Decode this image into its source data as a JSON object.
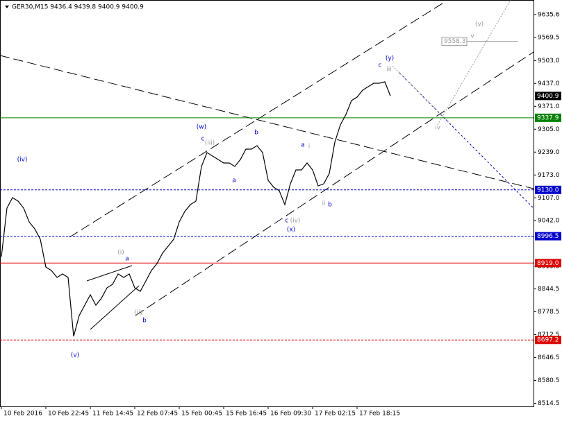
{
  "chart_data": {
    "type": "line",
    "header": "GER30,M15  9436.4 9439.8 9400.9 9400.9",
    "categories": [
      "10 Feb 2016",
      null,
      null,
      null,
      null,
      null,
      null,
      null,
      "10 Feb 22:45",
      null,
      null,
      null,
      null,
      null,
      null,
      null,
      "11 Feb 14:45",
      null,
      null,
      null,
      null,
      null,
      null,
      null,
      "12 Feb 07:45",
      null,
      null,
      null,
      null,
      null,
      null,
      null,
      "15 Feb 00:45",
      null,
      null,
      null,
      null,
      null,
      null,
      null,
      "15 Feb 16:45",
      null,
      null,
      null,
      null,
      null,
      null,
      null,
      "16 Feb 09:30",
      null,
      null,
      null,
      null,
      null,
      null,
      null,
      "17 Feb 02:15",
      null,
      null,
      null,
      null,
      null,
      null,
      null,
      "17 Feb 18:15",
      null,
      null,
      null,
      null,
      null,
      null
    ],
    "series": [
      {
        "color": "#000000",
        "values": [
          8937.6,
          9077.6,
          9107.6,
          9097.6,
          9077.6,
          9037.6,
          9017.6,
          8987.6,
          8907.6,
          8897.6,
          8877.6,
          8887.6,
          8877.6,
          8707.6,
          8767.6,
          8797.6,
          8827.6,
          8797.6,
          8817.6,
          8847.6,
          8857.6,
          8887.6,
          8877.6,
          8887.6,
          8847.6,
          8837.6,
          8867.6,
          8897.6,
          8917.6,
          8947.6,
          8967.6,
          8987.6,
          9037.6,
          9067.6,
          9087.6,
          9097.6,
          9197.6,
          9237.6,
          9227.6,
          9217.6,
          9207.6,
          9207.6,
          9197.6,
          9217.6,
          9247.6,
          9247.6,
          9257.6,
          9237.6,
          9157.6,
          9137.6,
          9127.6,
          9087.6,
          9147.6,
          9187.6,
          9187.6,
          9207.6,
          9187.6,
          9141.6,
          9147.6,
          9177.6,
          9267.6,
          9317.6,
          9347.6,
          9387.6,
          9397.6,
          9417.6,
          9427.6,
          9437.6,
          9437.6,
          9441.6,
          9400.9
        ]
      }
    ],
    "ylim": [
      8505.6,
      9677.6
    ],
    "yticks": [
      9635.6,
      9569.5,
      {
        "value": 9503,
        "label": "9503.0"
      },
      {
        "value": 9437,
        "label": "9437.0"
      },
      {
        "value": 9371,
        "label": "9371.0"
      },
      {
        "value": 9305,
        "label": "9305.0"
      },
      {
        "value": 9239,
        "label": "9239.0"
      },
      {
        "value": 9173,
        "label": "9173.0"
      },
      {
        "value": 9107,
        "label": "9107.0"
      },
      {
        "value": 9042,
        "label": "9042.0"
      },
      {
        "value": 8910,
        "label": "8910.0"
      },
      8844.5,
      8778.5,
      8712.5,
      8646.5,
      8580.5,
      8514.5
    ],
    "levels": [
      {
        "value": 9337.9,
        "color": "#008000",
        "dashed": false
      },
      {
        "value": 9130,
        "label": "9130.0",
        "color": "#0000cc",
        "dashed": true
      },
      {
        "value": 8996.5,
        "color": "#0000cc",
        "dashed": true
      },
      {
        "value": 8919,
        "label": "8919.0",
        "color": "#dd0000",
        "dashed": false
      },
      {
        "value": 8697.2,
        "color": "#dd0000",
        "dashed": true
      }
    ],
    "last_price": 9400.9,
    "target_price": 9558.3,
    "annotations": [
      {
        "text": "(iv)",
        "color": "#0000cc"
      },
      {
        "text": "(v)",
        "color": "#0000cc"
      },
      {
        "text": "(i)",
        "color": "#999999"
      },
      {
        "text": "a",
        "color": "#0000cc"
      },
      {
        "text": "(ii)",
        "color": "#999999"
      },
      {
        "text": "b",
        "color": "#0000cc"
      },
      {
        "text": "(w)",
        "color": "#0000cc"
      },
      {
        "text": "c",
        "color": "#0000cc"
      },
      {
        "text": "(iii)",
        "color": "#999999"
      },
      {
        "text": "b",
        "color": "#0000cc"
      },
      {
        "text": "a",
        "color": "#0000cc"
      },
      {
        "text": "a",
        "color": "#0000cc"
      },
      {
        "text": "i",
        "color": "#999999"
      },
      {
        "text": "ii",
        "color": "#999999"
      },
      {
        "text": "b",
        "color": "#0000cc"
      },
      {
        "text": "c",
        "color": "#0000cc"
      },
      {
        "text": "(iv)",
        "color": "#999999"
      },
      {
        "text": "(x)",
        "color": "#0000cc"
      },
      {
        "text": "(y)",
        "color": "#0000cc"
      },
      {
        "text": "c",
        "color": "#0000cc"
      },
      {
        "text": "iii",
        "color": "#999999"
      },
      {
        "text": "iv",
        "color": "#999999"
      },
      {
        "text": "v",
        "color": "#999999"
      },
      {
        "text": "(v)",
        "color": "#999999"
      }
    ]
  }
}
